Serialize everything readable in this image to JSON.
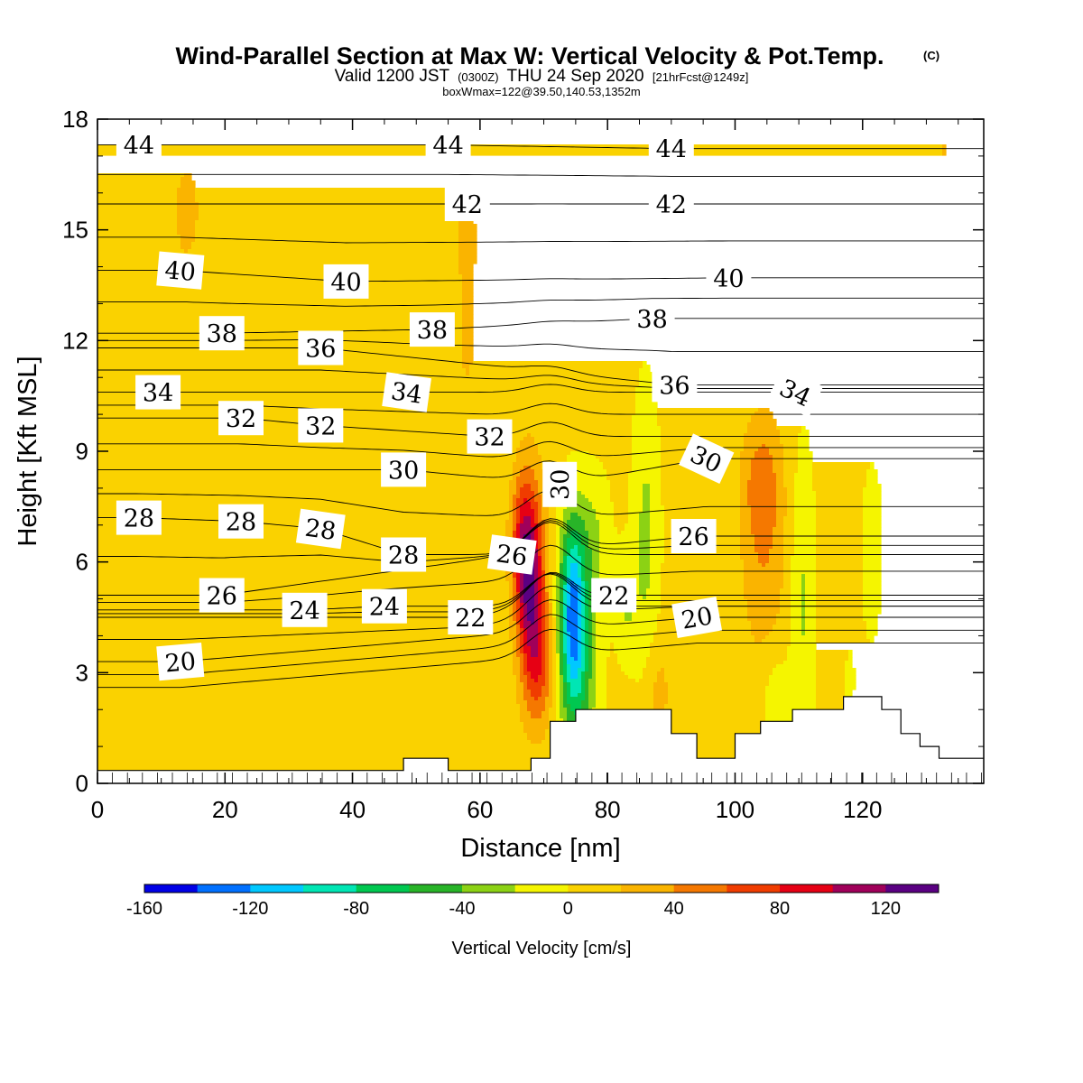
{
  "title": {
    "main": "Wind-Parallel Section at Max W: Vertical Velocity & Pot.Temp.",
    "mark": "(C)",
    "valid_prefix": "Valid 1200 JST",
    "valid_utc": "(0300Z)",
    "valid_date": "THU 24 Sep 2020",
    "forecast": "[21hrFcst@1249z]",
    "boxwmax": "boxWmax=122@39.50,140.53,1352m"
  },
  "chart_data": {
    "type": "heatmap",
    "xlabel": "Distance [nm]",
    "ylabel": "Height [Kft MSL]",
    "xlim": [
      0,
      139
    ],
    "ylim": [
      0,
      18
    ],
    "x_ticks": [
      0,
      20,
      40,
      60,
      80,
      100,
      120
    ],
    "y_ticks": [
      0,
      3,
      6,
      9,
      12,
      15,
      18
    ],
    "colorbar": {
      "title": "Vertical Velocity [cm/s]",
      "levels": [
        -160,
        -140,
        -120,
        -100,
        -80,
        -60,
        -40,
        -20,
        0,
        20,
        40,
        60,
        80,
        100,
        120,
        140
      ],
      "tick_labels": [
        -160,
        -120,
        -80,
        -40,
        0,
        40,
        80,
        120
      ],
      "colors": [
        "#0000e6",
        "#0070ff",
        "#00c8ff",
        "#00e6b4",
        "#00c850",
        "#28b428",
        "#8cd214",
        "#f5f500",
        "#fad200",
        "#fab400",
        "#f57800",
        "#f03c00",
        "#e60014",
        "#a0005a",
        "#5a0082"
      ]
    },
    "shading": {
      "background_value": 5,
      "features": [
        {
          "x": 68,
          "y": 5.3,
          "sx": 1.6,
          "sy": 1.9,
          "amp": 112
        },
        {
          "x": 66.5,
          "y": 6.6,
          "sx": 1.3,
          "sy": 1.3,
          "amp": 50
        },
        {
          "x": 69.5,
          "y": 3.0,
          "sx": 1.5,
          "sy": 1.1,
          "amp": 40
        },
        {
          "x": 74.5,
          "y": 4.8,
          "sx": 1.4,
          "sy": 1.7,
          "amp": -110
        },
        {
          "x": 75.5,
          "y": 3.0,
          "sx": 2.0,
          "sy": 1.7,
          "amp": -55
        },
        {
          "x": 77.5,
          "y": 6.5,
          "sx": 1.9,
          "sy": 1.3,
          "amp": -30
        },
        {
          "x": 86,
          "y": 6.7,
          "sx": 1.4,
          "sy": 2.5,
          "amp": -30
        },
        {
          "x": 83,
          "y": 4.8,
          "sx": 1.2,
          "sy": 1.0,
          "amp": -25
        },
        {
          "x": 104.5,
          "y": 6.8,
          "sx": 2.6,
          "sy": 2.3,
          "amp": 36
        },
        {
          "x": 104,
          "y": 8.2,
          "sx": 2.0,
          "sy": 1.0,
          "amp": 22
        },
        {
          "x": 110.5,
          "y": 5.0,
          "sx": 1.3,
          "sy": 2.7,
          "amp": -28
        },
        {
          "x": 121.5,
          "y": 6.3,
          "sx": 1.0,
          "sy": 1.5,
          "amp": -25
        },
        {
          "x": 106.5,
          "y": 2.2,
          "sx": 1.6,
          "sy": 0.9,
          "amp": -22
        },
        {
          "x": 118,
          "y": 2.8,
          "sx": 0.4,
          "sy": 0.5,
          "amp": -20
        },
        {
          "x": 88,
          "y": 2.5,
          "sx": 1.5,
          "sy": 1.0,
          "amp": 22
        },
        {
          "x": 100,
          "y": 2.5,
          "sx": 2.0,
          "sy": 1.0,
          "amp": 12
        },
        {
          "x": 14,
          "y": 15.5,
          "sx": 4.5,
          "sy": 3.0,
          "amp": 16
        },
        {
          "x": 30,
          "y": 15.8,
          "sx": 3.5,
          "sy": 2.5,
          "amp": 14
        },
        {
          "x": 58,
          "y": 15.5,
          "sx": 3.0,
          "sy": 2.5,
          "amp": 15
        },
        {
          "x": 72,
          "y": 12.8,
          "sx": 4.0,
          "sy": 2.0,
          "amp": 14
        },
        {
          "x": 122,
          "y": 13.5,
          "sx": 4.0,
          "sy": 2.5,
          "amp": 14
        },
        {
          "x": 5,
          "y": 7.0,
          "sx": 4.0,
          "sy": 2.0,
          "amp": 14
        },
        {
          "x": 40,
          "y": 8.5,
          "sx": 3.0,
          "sy": 3.0,
          "amp": 13
        },
        {
          "x": 36,
          "y": 2.5,
          "sx": 5.0,
          "sy": 2.0,
          "amp": 12
        },
        {
          "x": 20,
          "y": 5.5,
          "sx": 6.0,
          "sy": 1.5,
          "amp": 12
        },
        {
          "x": 130,
          "y": 4.0,
          "sx": 4.0,
          "sy": 2.0,
          "amp": 13
        },
        {
          "x": 133,
          "y": 17.2,
          "sx": 3.0,
          "sy": 1.2,
          "amp": 15
        },
        {
          "x": 58,
          "y": 11.0,
          "sx": 2.0,
          "sy": 2.0,
          "amp": 12
        }
      ]
    },
    "terrain": [
      [
        0,
        0.35
      ],
      [
        48,
        0.35
      ],
      [
        48,
        0.68
      ],
      [
        55,
        0.68
      ],
      [
        55,
        0.35
      ],
      [
        68,
        0.35
      ],
      [
        68,
        0.68
      ],
      [
        71,
        0.68
      ],
      [
        71,
        1.68
      ],
      [
        75,
        1.68
      ],
      [
        75,
        2.0
      ],
      [
        90,
        2.0
      ],
      [
        90,
        1.35
      ],
      [
        94,
        1.35
      ],
      [
        94,
        0.68
      ],
      [
        100,
        0.68
      ],
      [
        100,
        1.35
      ],
      [
        104,
        1.35
      ],
      [
        104,
        1.68
      ],
      [
        109,
        1.68
      ],
      [
        109,
        2.0
      ],
      [
        117,
        2.0
      ],
      [
        117,
        2.35
      ],
      [
        123,
        2.35
      ],
      [
        123,
        2.0
      ],
      [
        126,
        2.0
      ],
      [
        126,
        1.35
      ],
      [
        129,
        1.35
      ],
      [
        129,
        1.0
      ],
      [
        132,
        1.0
      ],
      [
        132,
        0.68
      ],
      [
        139,
        0.68
      ]
    ],
    "theta_contours": {
      "interval": 1,
      "labels": [
        {
          "text": "44",
          "x": 6.5,
          "y": 17.3,
          "angle": 0
        },
        {
          "text": "44",
          "x": 55,
          "y": 17.3,
          "angle": 0
        },
        {
          "text": "44",
          "x": 90,
          "y": 17.2,
          "angle": 0
        },
        {
          "text": "42",
          "x": 58,
          "y": 15.7,
          "angle": 0
        },
        {
          "text": "42",
          "x": 90,
          "y": 15.7,
          "angle": 0
        },
        {
          "text": "40",
          "x": 13,
          "y": 13.9,
          "angle": 5
        },
        {
          "text": "40",
          "x": 39,
          "y": 13.6,
          "angle": 0
        },
        {
          "text": "40",
          "x": 99,
          "y": 13.7,
          "angle": 0
        },
        {
          "text": "38",
          "x": 19.5,
          "y": 12.2,
          "angle": 0
        },
        {
          "text": "38",
          "x": 52.5,
          "y": 12.3,
          "angle": 0
        },
        {
          "text": "38",
          "x": 87,
          "y": 12.6,
          "angle": 0
        },
        {
          "text": "36",
          "x": 35,
          "y": 11.8,
          "angle": 0
        },
        {
          "text": "36",
          "x": 90.5,
          "y": 10.8,
          "angle": 0
        },
        {
          "text": "34",
          "x": 9.5,
          "y": 10.6,
          "angle": 0
        },
        {
          "text": "34",
          "x": 48.5,
          "y": 10.6,
          "angle": 8
        },
        {
          "text": "34",
          "x": 109.5,
          "y": 10.6,
          "angle": 25
        },
        {
          "text": "32",
          "x": 22.5,
          "y": 9.9,
          "angle": 0
        },
        {
          "text": "32",
          "x": 35,
          "y": 9.7,
          "angle": 0
        },
        {
          "text": "32",
          "x": 61.5,
          "y": 9.4,
          "angle": 0
        },
        {
          "text": "30",
          "x": 48,
          "y": 8.5,
          "angle": 0
        },
        {
          "text": "30",
          "x": 72.5,
          "y": 8.1,
          "angle": -90
        },
        {
          "text": "30",
          "x": 95.5,
          "y": 8.8,
          "angle": 25
        },
        {
          "text": "28",
          "x": 6.5,
          "y": 7.2,
          "angle": 0
        },
        {
          "text": "28",
          "x": 22.5,
          "y": 7.1,
          "angle": 0
        },
        {
          "text": "28",
          "x": 35,
          "y": 6.9,
          "angle": 8
        },
        {
          "text": "28",
          "x": 48,
          "y": 6.2,
          "angle": 0
        },
        {
          "text": "26",
          "x": 19.5,
          "y": 5.1,
          "angle": 0
        },
        {
          "text": "26",
          "x": 65,
          "y": 6.2,
          "angle": 8
        },
        {
          "text": "26",
          "x": 93.5,
          "y": 6.7,
          "angle": 0
        },
        {
          "text": "24",
          "x": 32.5,
          "y": 4.7,
          "angle": 0
        },
        {
          "text": "24",
          "x": 45,
          "y": 4.8,
          "angle": 0
        },
        {
          "text": "22",
          "x": 58.5,
          "y": 4.5,
          "angle": 0
        },
        {
          "text": "22",
          "x": 81,
          "y": 5.1,
          "angle": 0
        },
        {
          "text": "20",
          "x": 13,
          "y": 3.3,
          "angle": -5
        },
        {
          "text": "20",
          "x": 94,
          "y": 4.5,
          "angle": -10
        }
      ]
    }
  }
}
